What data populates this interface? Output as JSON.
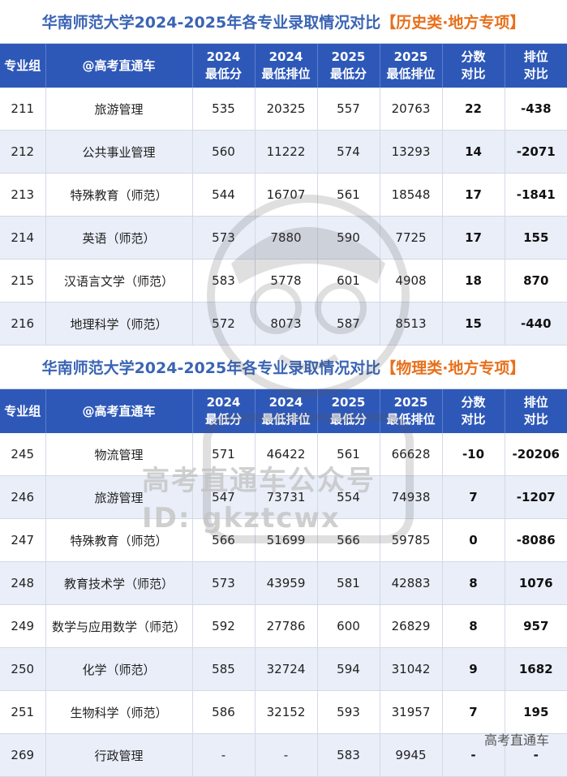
{
  "sections": [
    {
      "title_main": "华南师范大学2024-2025年各专业录取情况对比",
      "title_tag": "【历史类·地方专项】",
      "headers": {
        "group": "专业组",
        "name": "@高考直通车",
        "min_score_2024": [
          "2024",
          "最低分"
        ],
        "min_rank_2024": [
          "2024",
          "最低排位"
        ],
        "min_score_2025": [
          "2025",
          "最低分"
        ],
        "min_rank_2025": [
          "2025",
          "最低排位"
        ],
        "score_diff": [
          "分数",
          "对比"
        ],
        "rank_diff": [
          "排位",
          "对比"
        ]
      },
      "rows": [
        [
          "211",
          "旅游管理",
          "535",
          "20325",
          "557",
          "20763",
          "22",
          "-438"
        ],
        [
          "212",
          "公共事业管理",
          "560",
          "11222",
          "574",
          "13293",
          "14",
          "-2071"
        ],
        [
          "213",
          "特殊教育（师范）",
          "544",
          "16707",
          "561",
          "18548",
          "17",
          "-1841"
        ],
        [
          "214",
          "英语（师范）",
          "573",
          "7880",
          "590",
          "7725",
          "17",
          "155"
        ],
        [
          "215",
          "汉语言文学（师范）",
          "583",
          "5778",
          "601",
          "4908",
          "18",
          "870"
        ],
        [
          "216",
          "地理科学（师范）",
          "572",
          "8073",
          "587",
          "8513",
          "15",
          "-440"
        ]
      ]
    },
    {
      "title_main": "华南师范大学2024-2025年各专业录取情况对比",
      "title_tag": "【物理类·地方专项】",
      "headers": {
        "group": "专业组",
        "name": "@高考直通车",
        "min_score_2024": [
          "2024",
          "最低分"
        ],
        "min_rank_2024": [
          "2024",
          "最低排位"
        ],
        "min_score_2025": [
          "2025",
          "最低分"
        ],
        "min_rank_2025": [
          "2025",
          "最低排位"
        ],
        "score_diff": [
          "分数",
          "对比"
        ],
        "rank_diff": [
          "排位",
          "对比"
        ]
      },
      "rows": [
        [
          "245",
          "物流管理",
          "571",
          "46422",
          "561",
          "66628",
          "-10",
          "-20206"
        ],
        [
          "246",
          "旅游管理",
          "547",
          "73731",
          "554",
          "74938",
          "7",
          "-1207"
        ],
        [
          "247",
          "特殊教育（师范）",
          "566",
          "51699",
          "566",
          "59785",
          "0",
          "-8086"
        ],
        [
          "248",
          "教育技术学（师范）",
          "573",
          "43959",
          "581",
          "42883",
          "8",
          "1076"
        ],
        [
          "249",
          "数学与应用数学（师范）",
          "592",
          "27786",
          "600",
          "26829",
          "8",
          "957"
        ],
        [
          "250",
          "化学（师范）",
          "585",
          "32724",
          "594",
          "31042",
          "9",
          "1682"
        ],
        [
          "251",
          "生物科学（师范）",
          "586",
          "32152",
          "593",
          "31957",
          "7",
          "195"
        ],
        [
          "269",
          "行政管理",
          "-",
          "-",
          "583",
          "9945",
          "-",
          "-"
        ]
      ]
    }
  ],
  "watermark": {
    "line1": "高考直通车公众号",
    "line2": "ID: gkztcwx"
  },
  "corner_watermark": "高考直通车"
}
